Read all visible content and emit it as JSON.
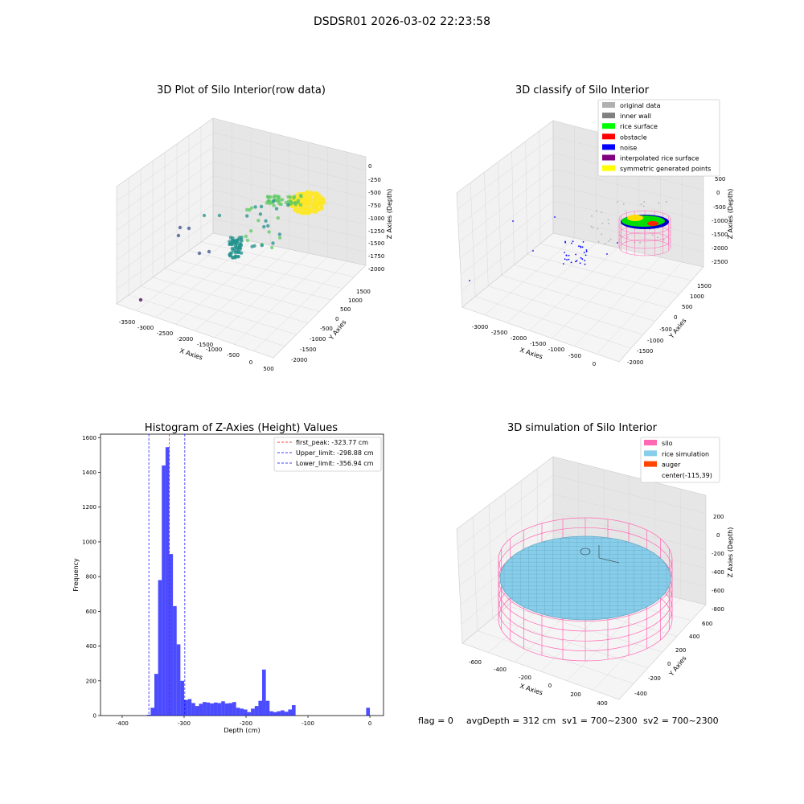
{
  "suptitle": "DSDSR01 2026-03-02 22:23:58",
  "footer": {
    "flag": "flag = 0",
    "avg": "avgDepth = 312 cm",
    "sv1": "sv1 = 700~2300",
    "sv2": "sv2 = 700~2300"
  },
  "chart_data": [
    {
      "type": "scatter3d",
      "title": "3D Plot of Silo Interior(row data)",
      "xlabel": "X Axies",
      "ylabel": "Y Axies",
      "zlabel": "Z Axies (Depth)",
      "xticks": [
        "-3500",
        "-3000",
        "-2500",
        "-2000",
        "-1500",
        "-1000",
        "-500",
        "0",
        "500"
      ],
      "yticks": [
        "-2000",
        "-1500",
        "-1000",
        "-500",
        "0",
        "500",
        "1000",
        "1500"
      ],
      "zticks": [
        "0",
        "-250",
        "-500",
        "-750",
        "-1000",
        "-1250",
        "-1500",
        "-1750",
        "-2000"
      ],
      "colormap": [
        "#440154",
        "#3b528b",
        "#21918c",
        "#5ec962",
        "#fde725"
      ]
    },
    {
      "type": "scatter3d",
      "title": "3D classify of Silo Interior",
      "xlabel": "X Axies",
      "ylabel": "Y Axies",
      "zlabel": "Z Axies (Depth)",
      "xticks": [
        "-3000",
        "-2500",
        "-2000",
        "-1500",
        "-1000",
        "-500",
        "0"
      ],
      "yticks": [
        "-2000",
        "-1500",
        "-1000",
        "-500",
        "0",
        "500",
        "1000",
        "1500"
      ],
      "zticks": [
        "500",
        "0",
        "-500",
        "-1000",
        "-1500",
        "-2000",
        "-2500"
      ],
      "legend": [
        {
          "label": "original data",
          "color": "#b0b0b0"
        },
        {
          "label": "inner wall",
          "color": "#808080"
        },
        {
          "label": "rice surface",
          "color": "#00ff00"
        },
        {
          "label": "obstacle",
          "color": "#ff0000"
        },
        {
          "label": "noise",
          "color": "#0000ff"
        },
        {
          "label": "interpolated rice surface",
          "color": "#800080"
        },
        {
          "label": "symmetric generated points",
          "color": "#ffff00"
        }
      ],
      "legend_loc": "upper right"
    },
    {
      "type": "bar",
      "title": "Histogram of Z-Axies (Height) Values",
      "xlabel": "Depth (cm)",
      "ylabel": "Frequency",
      "xlim": [
        -435,
        22
      ],
      "ylim": [
        0,
        1620
      ],
      "xticks": [
        -400,
        -300,
        -200,
        -100,
        0
      ],
      "yticks": [
        0,
        200,
        400,
        600,
        800,
        1000,
        1200,
        1400,
        1600
      ],
      "bar_color": "#0000ff",
      "bin_width": 6,
      "bins": [
        [
          -360,
          5
        ],
        [
          -354,
          45
        ],
        [
          -348,
          240
        ],
        [
          -342,
          780
        ],
        [
          -336,
          1440
        ],
        [
          -330,
          1545
        ],
        [
          -324,
          930
        ],
        [
          -318,
          630
        ],
        [
          -312,
          410
        ],
        [
          -306,
          200
        ],
        [
          -300,
          90
        ],
        [
          -294,
          95
        ],
        [
          -288,
          72
        ],
        [
          -282,
          55
        ],
        [
          -276,
          68
        ],
        [
          -270,
          78
        ],
        [
          -264,
          75
        ],
        [
          -258,
          70
        ],
        [
          -252,
          75
        ],
        [
          -246,
          72
        ],
        [
          -240,
          82
        ],
        [
          -234,
          70
        ],
        [
          -228,
          72
        ],
        [
          -222,
          78
        ],
        [
          -216,
          45
        ],
        [
          -210,
          40
        ],
        [
          -204,
          35
        ],
        [
          -198,
          20
        ],
        [
          -192,
          40
        ],
        [
          -186,
          55
        ],
        [
          -180,
          85
        ],
        [
          -174,
          265
        ],
        [
          -168,
          85
        ],
        [
          -162,
          25
        ],
        [
          -156,
          20
        ],
        [
          -150,
          25
        ],
        [
          -144,
          30
        ],
        [
          -138,
          22
        ],
        [
          -132,
          35
        ],
        [
          -126,
          60
        ],
        [
          -6,
          45
        ]
      ],
      "vlines": [
        {
          "x": -323.77,
          "label": "first_peak: -323.77 cm",
          "color": "#ff0000"
        },
        {
          "x": -298.88,
          "label": "Upper_limit: -298.88 cm",
          "color": "#0000ff"
        },
        {
          "x": -356.94,
          "label": "Lower_limit: -356.94 cm",
          "color": "#0000ff"
        }
      ],
      "legend_loc": "upper right"
    },
    {
      "type": "surface3d",
      "title": "3D simulation of Silo Interior",
      "xlabel": "X Axies",
      "ylabel": "Y Axies",
      "zlabel": "Z Axies (Depth)",
      "xticks": [
        "-600",
        "-400",
        "-200",
        "0",
        "200",
        "400"
      ],
      "yticks": [
        "-400",
        "-200",
        "0",
        "200",
        "400",
        "600"
      ],
      "zticks": [
        "200",
        "0",
        "-200",
        "-400",
        "-600",
        "-800"
      ],
      "legend": [
        {
          "label": "silo",
          "color": "#ff69b4"
        },
        {
          "label": "rice simulation",
          "color": "#87ceeb"
        },
        {
          "label": "auger",
          "color": "#ff4500"
        },
        {
          "label": "center(-115,39)",
          "color": ""
        }
      ],
      "legend_loc": "upper right"
    }
  ]
}
